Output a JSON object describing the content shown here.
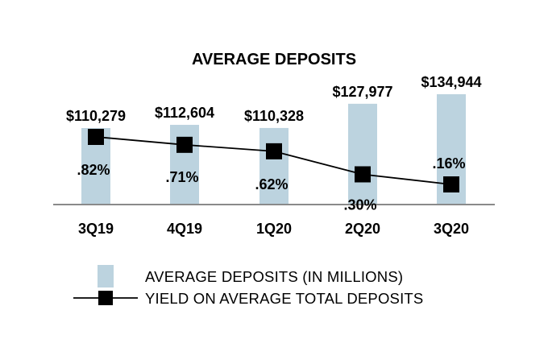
{
  "chart_data": {
    "type": "bar",
    "title": "AVERAGE DEPOSITS",
    "categories": [
      "3Q19",
      "4Q19",
      "1Q20",
      "2Q20",
      "3Q20"
    ],
    "series": [
      {
        "name": "AVERAGE DEPOSITS (IN MILLIONS)",
        "kind": "bar",
        "values": [
          110279,
          112604,
          110328,
          127977,
          134944
        ],
        "labels": [
          "$110,279",
          "$112,604",
          "$110,328",
          "$127,977",
          "$134,944"
        ]
      },
      {
        "name": "YIELD ON AVERAGE TOTAL DEPOSITS",
        "kind": "line",
        "values": [
          0.82,
          0.71,
          0.62,
          0.3,
          0.16
        ],
        "labels": [
          ".82%",
          ".71%",
          ".62%",
          ".30%",
          ".16%"
        ]
      }
    ],
    "xlabel": "",
    "ylabel": "",
    "legend": "bottom",
    "colors": {
      "bar": "#bcd3df",
      "line": "#000000",
      "marker": "#000000",
      "axis": "#8a8a8a"
    }
  }
}
